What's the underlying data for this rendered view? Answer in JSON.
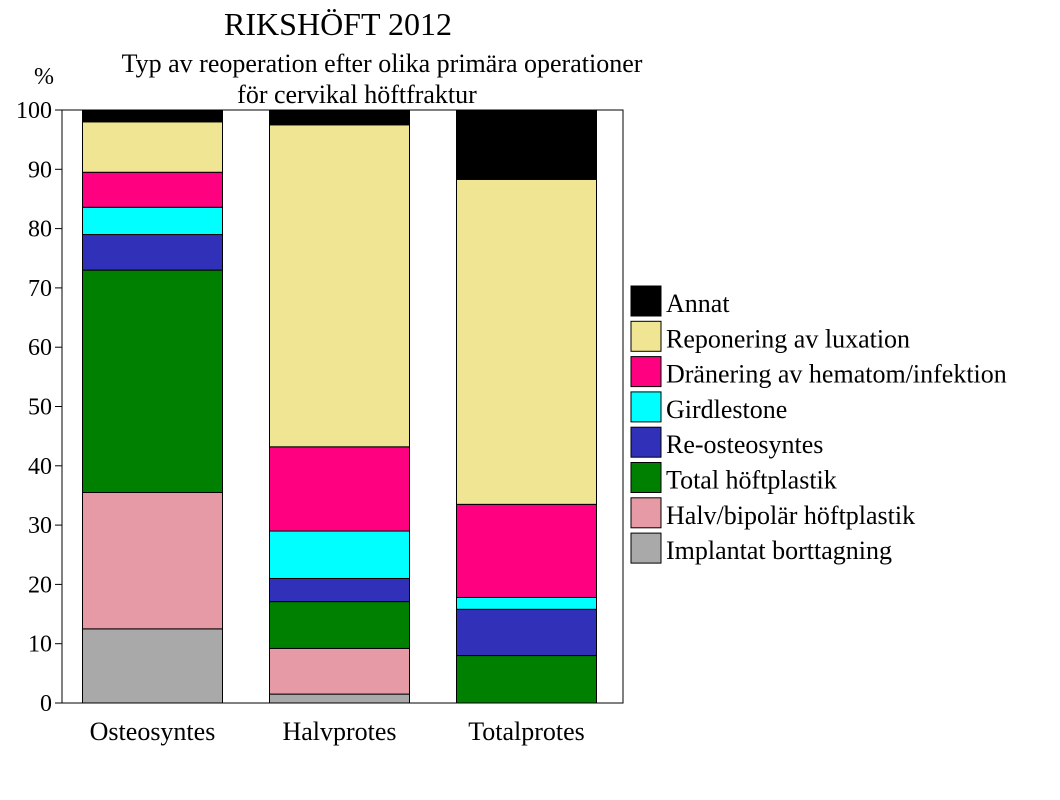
{
  "chart_data": {
    "type": "bar",
    "stacked": true,
    "percent": true,
    "title": "RIKSHÖFT 2012",
    "subtitle_lines": [
      "Typ av reoperation efter olika primära operationer",
      "för cervikal höftfraktur"
    ],
    "ylabel": "%",
    "ylim": [
      0,
      100
    ],
    "yticks": [
      "0",
      "10",
      "20",
      "30",
      "40",
      "50",
      "60",
      "70",
      "80",
      "90",
      "100"
    ],
    "categories": [
      "Osteosyntes",
      "Halvprotes",
      "Totalprotes"
    ],
    "legend_position": "right",
    "series": [
      {
        "name": "Implantat borttagning",
        "color": "#a9a9a9",
        "values": [
          12.5,
          1.5,
          0
        ]
      },
      {
        "name": "Halv/bipolär höftplastik",
        "color": "#e59aa5",
        "values": [
          23.0,
          7.7,
          0
        ]
      },
      {
        "name": "Total höftplastik",
        "color": "#008000",
        "values": [
          37.5,
          7.9,
          8.0
        ]
      },
      {
        "name": "Re-osteosyntes",
        "color": "#3030b8",
        "values": [
          6.0,
          3.9,
          7.8
        ]
      },
      {
        "name": "Girdlestone",
        "color": "#00ffff",
        "values": [
          4.6,
          8.0,
          2.0
        ]
      },
      {
        "name": "Dränering av hematom/infektion",
        "color": "#ff0080",
        "values": [
          5.9,
          14.2,
          15.7
        ]
      },
      {
        "name": "Reponering av luxation",
        "color": "#f0e592",
        "values": [
          8.5,
          54.3,
          54.8
        ]
      },
      {
        "name": "Annat",
        "color": "#000000",
        "values": [
          2.0,
          2.5,
          11.7
        ]
      }
    ]
  }
}
